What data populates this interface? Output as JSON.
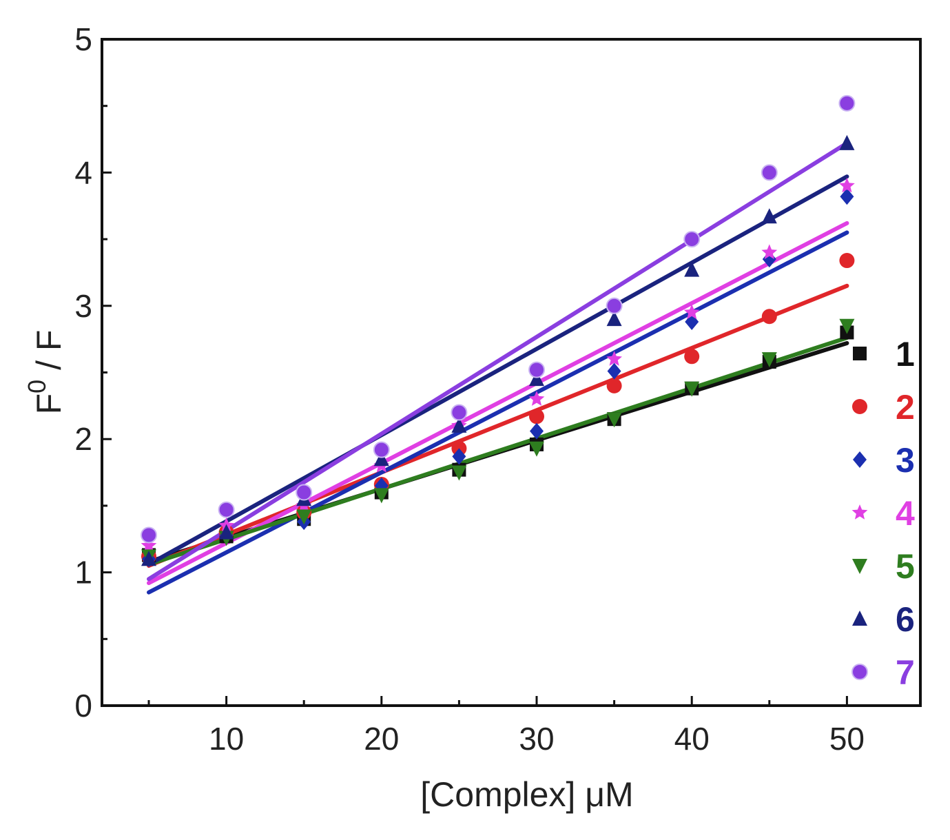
{
  "chart_data": {
    "type": "scatter",
    "xlabel": "[Complex] μM",
    "ylabel_main": "F",
    "ylabel_sup": "0",
    "ylabel_tail": " / F",
    "xlim": [
      2,
      55
    ],
    "ylim": [
      0,
      5
    ],
    "xticks": [
      10,
      20,
      30,
      40,
      50
    ],
    "xminor": [
      5,
      15,
      25,
      35,
      45
    ],
    "yticks": [
      0,
      1,
      2,
      3,
      4,
      5
    ],
    "yminor": [
      0.5,
      1.5,
      2.5,
      3.5,
      4.5
    ],
    "x": [
      5,
      10,
      15,
      20,
      25,
      30,
      35,
      40,
      45,
      50
    ],
    "legend_position": "right",
    "series": [
      {
        "name": "1",
        "color": "#111111",
        "marker": "square",
        "values": [
          1.13,
          1.27,
          1.4,
          1.6,
          1.77,
          1.96,
          2.15,
          2.38,
          2.58,
          2.8
        ],
        "fit": [
          1.08,
          2.72
        ]
      },
      {
        "name": "2",
        "color": "#e0262a",
        "marker": "circle",
        "values": [
          1.12,
          1.3,
          1.45,
          1.66,
          1.93,
          2.17,
          2.4,
          2.62,
          2.92,
          3.34
        ],
        "fit": [
          1.05,
          3.15
        ]
      },
      {
        "name": "3",
        "color": "#1b2fb0",
        "marker": "diamond",
        "values": [
          1.1,
          1.28,
          1.38,
          1.65,
          1.87,
          2.06,
          2.51,
          2.88,
          3.35,
          3.82
        ],
        "fit": [
          0.85,
          3.55
        ]
      },
      {
        "name": "4",
        "color": "#e03fe3",
        "marker": "star",
        "values": [
          1.2,
          1.35,
          1.5,
          1.8,
          2.1,
          2.3,
          2.6,
          2.95,
          3.4,
          3.9
        ],
        "fit": [
          0.92,
          3.62
        ]
      },
      {
        "name": "5",
        "color": "#2e7d1f",
        "marker": "triangle-down",
        "values": [
          1.12,
          1.26,
          1.42,
          1.58,
          1.75,
          1.93,
          2.15,
          2.38,
          2.6,
          2.85
        ],
        "fit": [
          1.06,
          2.76
        ]
      },
      {
        "name": "6",
        "color": "#1a237e",
        "marker": "triangle-up",
        "values": [
          1.1,
          1.3,
          1.55,
          1.85,
          2.1,
          2.45,
          2.9,
          3.27,
          3.67,
          4.22
        ],
        "fit": [
          1.06,
          3.97
        ]
      },
      {
        "name": "7",
        "color": "#8a3ee0",
        "marker": "circle-hi",
        "values": [
          1.28,
          1.47,
          1.6,
          1.92,
          2.2,
          2.52,
          3.0,
          3.5,
          4.0,
          4.52
        ],
        "fit": [
          0.95,
          4.22
        ]
      }
    ]
  }
}
